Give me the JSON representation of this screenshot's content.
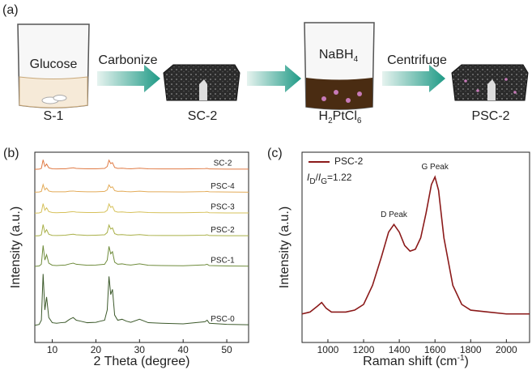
{
  "panel_a": {
    "label": "(a)",
    "beaker_1_text": "Glucose",
    "step_1": "Carbonize",
    "reagent_parts": [
      "NaBH",
      "4"
    ],
    "step_2": "Centrifuge",
    "sample_1": "S-1",
    "sample_2": "SC-2",
    "precursor_parts": [
      "H",
      "2",
      "PtCl",
      "6"
    ],
    "sample_3": "PSC-2"
  },
  "chart_data": [
    {
      "type": "line",
      "panel_label": "(b)",
      "xlabel": "2 Theta (degree)",
      "ylabel": "Intensity (a.u.)",
      "xlim": [
        6,
        55
      ],
      "ylim": [
        0,
        100
      ],
      "xticks": [
        10,
        20,
        30,
        40,
        50
      ],
      "x": [
        6,
        7,
        7.5,
        7.9,
        8.3,
        8.7,
        9.2,
        10,
        11,
        12,
        13,
        14,
        14.8,
        15.5,
        16.5,
        18,
        20,
        21,
        22,
        22.6,
        23,
        23.4,
        23.8,
        24.3,
        25,
        26,
        27,
        28,
        30,
        32,
        35,
        40,
        45,
        45.5,
        46,
        50,
        55
      ],
      "series": [
        {
          "name": "PSC-0",
          "color": "#3d5a2c",
          "values": [
            9,
            9.5,
            11.7,
            36,
            17.1,
            23.9,
            13.1,
            10.4,
            10.1,
            10.4,
            10.6,
            12.2,
            13.1,
            11.7,
            11.2,
            10.4,
            10.6,
            11.2,
            11.7,
            17.1,
            34.7,
            25.2,
            27.9,
            14.4,
            11.7,
            12.2,
            11.2,
            10.6,
            12.2,
            10.4,
            10.1,
            9.8,
            10.9,
            11.7,
            10.1,
            9.5,
            9.3
          ]
        },
        {
          "name": "PSC-1",
          "color": "#6f8c3c",
          "values": [
            40,
            40.2,
            41.1,
            51,
            43.3,
            46.1,
            41.7,
            40.6,
            40.4,
            40.6,
            40.7,
            41.3,
            41.7,
            41.1,
            40.9,
            40.6,
            40.7,
            40.9,
            41.1,
            43.3,
            50.5,
            46.6,
            47.7,
            42.2,
            41.1,
            41.3,
            40.9,
            40.7,
            41.3,
            40.6,
            40.4,
            40.3,
            40.8,
            41.1,
            40.4,
            40.2,
            40.1
          ]
        },
        {
          "name": "PSC-2",
          "color": "#a9b048",
          "values": [
            56,
            56.1,
            56.6,
            62,
            57.8,
            59.3,
            56.9,
            56.3,
            56.2,
            56.3,
            56.4,
            56.7,
            56.9,
            56.6,
            56.5,
            56.3,
            56.4,
            56.5,
            56.6,
            57.8,
            61.7,
            59.6,
            60.2,
            57.2,
            56.6,
            56.7,
            56.5,
            56.4,
            56.7,
            56.3,
            56.2,
            56.2,
            56.4,
            56.6,
            56.2,
            56.1,
            56.1
          ]
        },
        {
          "name": "PSC-3",
          "color": "#d6c15a",
          "values": [
            68,
            68.1,
            68.5,
            73,
            69.5,
            70.8,
            68.8,
            68.3,
            68.2,
            68.3,
            68.3,
            68.6,
            68.8,
            68.5,
            68.4,
            68.3,
            68.3,
            68.4,
            68.5,
            69.5,
            72.8,
            71,
            71.5,
            69,
            68.5,
            68.6,
            68.4,
            68.3,
            68.6,
            68.3,
            68.2,
            68.2,
            68.4,
            68.5,
            68.2,
            68.1,
            68.1
          ]
        },
        {
          "name": "PSC-4",
          "color": "#e3ab58",
          "values": [
            79,
            79.1,
            79.4,
            83,
            80.2,
            81.2,
            79.6,
            79.2,
            79.2,
            79.2,
            79.2,
            79.5,
            79.6,
            79.4,
            79.3,
            79.2,
            79.2,
            79.3,
            79.4,
            80.2,
            82.8,
            81.4,
            81.8,
            79.8,
            79.4,
            79.5,
            79.3,
            79.2,
            79.5,
            79.2,
            79.2,
            79.1,
            79.3,
            79.4,
            79.2,
            79.1,
            79
          ]
        },
        {
          "name": "SC-2",
          "color": "#e07b45",
          "values": [
            91,
            91.1,
            91.5,
            96,
            92.5,
            93.8,
            91.8,
            91.3,
            91.2,
            91.3,
            91.3,
            91.6,
            91.8,
            91.5,
            91.4,
            91.3,
            91.3,
            91.4,
            91.5,
            92.5,
            95.8,
            94,
            94.5,
            92,
            91.5,
            91.6,
            91.4,
            91.3,
            91.6,
            91.3,
            91.2,
            91.2,
            91.4,
            91.5,
            91.2,
            91.1,
            91.1
          ]
        }
      ]
    },
    {
      "type": "line",
      "panel_label": "(c)",
      "xlabel_parts": [
        "Raman shift (cm",
        "-1",
        ")"
      ],
      "ylabel": "Intensity (a.u.)",
      "xlim": [
        855,
        2130
      ],
      "ylim": [
        0,
        100
      ],
      "xticks": [
        1000,
        1200,
        1400,
        1600,
        1800,
        2000
      ],
      "legend": "upper left",
      "ratio_parts": [
        "I",
        "D",
        "/",
        "I",
        "G",
        "=1.22"
      ],
      "annotations": [
        "D Peak",
        "G Peak"
      ],
      "x": [
        855,
        900,
        940,
        965,
        990,
        1020,
        1100,
        1150,
        1200,
        1250,
        1300,
        1340,
        1370,
        1400,
        1430,
        1460,
        1490,
        1520,
        1550,
        1580,
        1600,
        1620,
        1650,
        1700,
        1750,
        1800,
        1900,
        2000,
        2130
      ],
      "series": [
        {
          "name": "PSC-2",
          "color": "#8b1a1a",
          "values": [
            15,
            16,
            19,
            21,
            18,
            16,
            16,
            17,
            20,
            30,
            45,
            58,
            62,
            58,
            51,
            48,
            49,
            55,
            68,
            83,
            87,
            80,
            55,
            30,
            20,
            17,
            16,
            15,
            15
          ]
        }
      ]
    }
  ]
}
